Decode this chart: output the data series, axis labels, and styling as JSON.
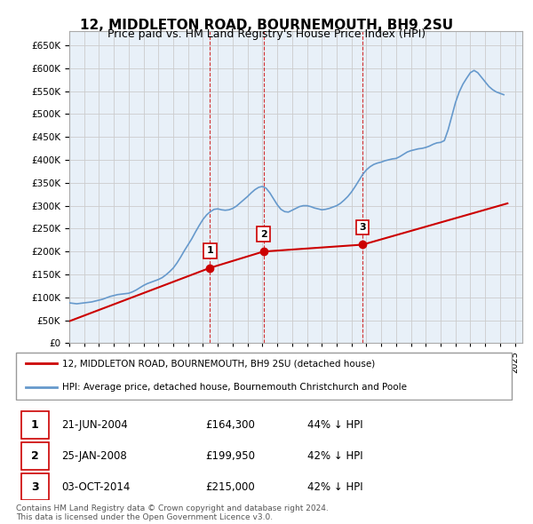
{
  "title": "12, MIDDLETON ROAD, BOURNEMOUTH, BH9 2SU",
  "subtitle": "Price paid vs. HM Land Registry's House Price Index (HPI)",
  "ylabel_ticks": [
    0,
    50000,
    100000,
    150000,
    200000,
    250000,
    300000,
    350000,
    400000,
    450000,
    500000,
    550000,
    600000,
    650000
  ],
  "ylim": [
    0,
    680000
  ],
  "xlim_start": 1995.0,
  "xlim_end": 2025.5,
  "grid_color": "#cccccc",
  "background_color": "#ffffff",
  "plot_bg_color": "#e8f0f8",
  "hpi_color": "#6699cc",
  "price_color": "#cc0000",
  "sale_points": [
    {
      "year": 2004.47,
      "price": 164300,
      "label": "1"
    },
    {
      "year": 2008.07,
      "price": 199950,
      "label": "2"
    },
    {
      "year": 2014.75,
      "price": 215000,
      "label": "3"
    }
  ],
  "sale_vlines": [
    2004.47,
    2008.07,
    2014.75
  ],
  "legend_label_price": "12, MIDDLETON ROAD, BOURNEMOUTH, BH9 2SU (detached house)",
  "legend_label_hpi": "HPI: Average price, detached house, Bournemouth Christchurch and Poole",
  "table_data": [
    {
      "num": "1",
      "date": "21-JUN-2004",
      "price": "£164,300",
      "change": "44% ↓ HPI"
    },
    {
      "num": "2",
      "date": "25-JAN-2008",
      "price": "£199,950",
      "change": "42% ↓ HPI"
    },
    {
      "num": "3",
      "date": "03-OCT-2014",
      "price": "£215,000",
      "change": "42% ↓ HPI"
    }
  ],
  "footer": "Contains HM Land Registry data © Crown copyright and database right 2024.\nThis data is licensed under the Open Government Licence v3.0.",
  "hpi_data_x": [
    1995,
    1995.25,
    1995.5,
    1995.75,
    1996,
    1996.25,
    1996.5,
    1996.75,
    1997,
    1997.25,
    1997.5,
    1997.75,
    1998,
    1998.25,
    1998.5,
    1998.75,
    1999,
    1999.25,
    1999.5,
    1999.75,
    2000,
    2000.25,
    2000.5,
    2000.75,
    2001,
    2001.25,
    2001.5,
    2001.75,
    2002,
    2002.25,
    2002.5,
    2002.75,
    2003,
    2003.25,
    2003.5,
    2003.75,
    2004,
    2004.25,
    2004.5,
    2004.75,
    2005,
    2005.25,
    2005.5,
    2005.75,
    2006,
    2006.25,
    2006.5,
    2006.75,
    2007,
    2007.25,
    2007.5,
    2007.75,
    2008,
    2008.25,
    2008.5,
    2008.75,
    2009,
    2009.25,
    2009.5,
    2009.75,
    2010,
    2010.25,
    2010.5,
    2010.75,
    2011,
    2011.25,
    2011.5,
    2011.75,
    2012,
    2012.25,
    2012.5,
    2012.75,
    2013,
    2013.25,
    2013.5,
    2013.75,
    2014,
    2014.25,
    2014.5,
    2014.75,
    2015,
    2015.25,
    2015.5,
    2015.75,
    2016,
    2016.25,
    2016.5,
    2016.75,
    2017,
    2017.25,
    2017.5,
    2017.75,
    2018,
    2018.25,
    2018.5,
    2018.75,
    2019,
    2019.25,
    2019.5,
    2019.75,
    2020,
    2020.25,
    2020.5,
    2020.75,
    2021,
    2021.25,
    2021.5,
    2021.75,
    2022,
    2022.25,
    2022.5,
    2022.75,
    2023,
    2023.25,
    2023.5,
    2023.75,
    2024,
    2024.25
  ],
  "hpi_data_y": [
    88000,
    87000,
    86000,
    87000,
    88000,
    89000,
    90000,
    92000,
    94000,
    96000,
    99000,
    102000,
    104000,
    106000,
    107000,
    108000,
    109000,
    112000,
    116000,
    121000,
    126000,
    130000,
    133000,
    136000,
    139000,
    143000,
    149000,
    156000,
    164000,
    175000,
    188000,
    202000,
    215000,
    228000,
    243000,
    257000,
    270000,
    280000,
    287000,
    292000,
    293000,
    291000,
    290000,
    291000,
    294000,
    299000,
    306000,
    313000,
    320000,
    328000,
    335000,
    340000,
    342000,
    338000,
    328000,
    315000,
    302000,
    292000,
    287000,
    286000,
    290000,
    294000,
    298000,
    300000,
    300000,
    298000,
    295000,
    293000,
    291000,
    292000,
    294000,
    297000,
    300000,
    305000,
    312000,
    320000,
    330000,
    342000,
    355000,
    368000,
    378000,
    385000,
    390000,
    393000,
    395000,
    398000,
    400000,
    402000,
    403000,
    407000,
    412000,
    417000,
    420000,
    422000,
    424000,
    425000,
    427000,
    430000,
    434000,
    437000,
    438000,
    442000,
    465000,
    495000,
    525000,
    548000,
    565000,
    578000,
    590000,
    595000,
    590000,
    580000,
    570000,
    560000,
    553000,
    548000,
    545000,
    542000
  ],
  "price_data_x": [
    1995.0,
    2004.47,
    2008.07,
    2014.75,
    2024.5
  ],
  "price_data_y": [
    48000,
    164300,
    199950,
    215000,
    305000
  ]
}
